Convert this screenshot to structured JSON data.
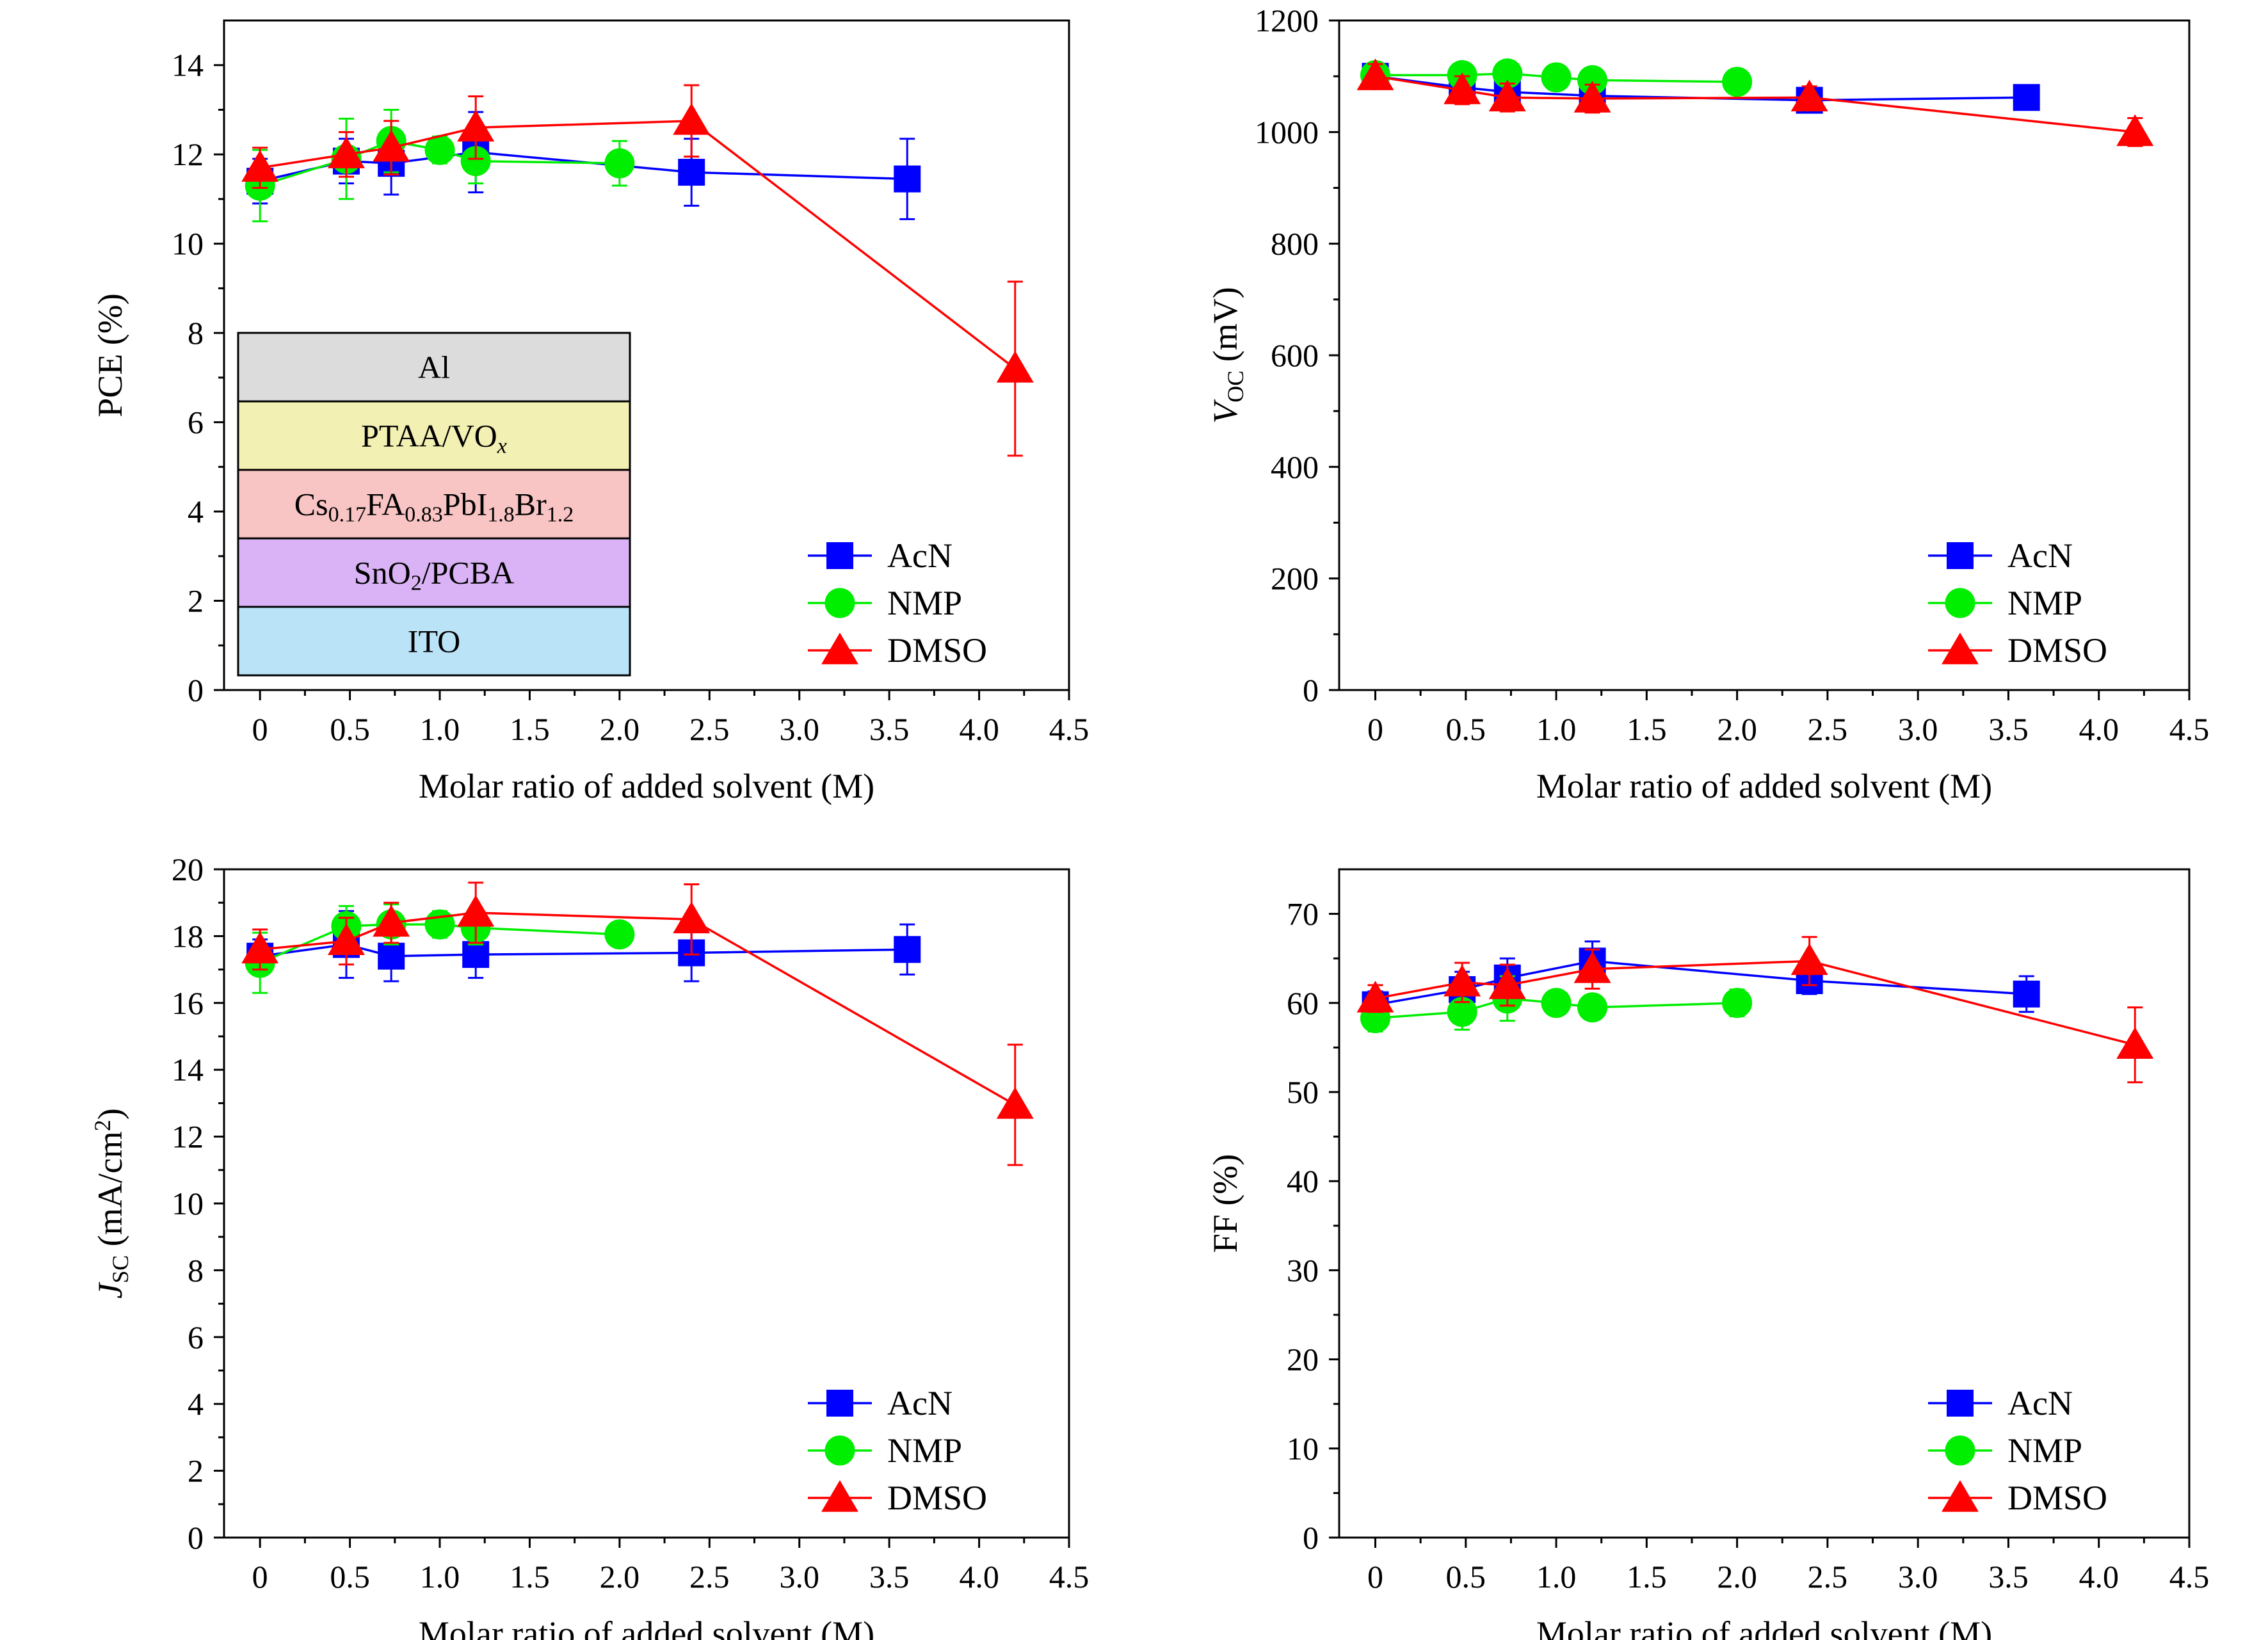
{
  "figure": {
    "colors": {
      "AcN": "#0000ff",
      "NMP": "#00ee00",
      "DMSO": "#ff0000"
    },
    "device_stack": {
      "layers": [
        {
          "label": "Al",
          "color": "#dcdcdc"
        },
        {
          "label": "PTAA/VO",
          "sub": "x",
          "sub_italic": true,
          "color": "#f3f0b3"
        },
        {
          "label": "Cs",
          "parts": [
            "0.17",
            "FA",
            "0.83",
            "PbI",
            "1.8",
            "Br",
            "1.2"
          ],
          "color": "#f8c4c4"
        },
        {
          "label": "SnO",
          "parts": [
            "2",
            "/PCBA"
          ],
          "color": "#d9b3f5"
        },
        {
          "label": "ITO",
          "color": "#bbe3f8"
        }
      ]
    }
  },
  "chart_data": [
    {
      "type": "line",
      "panel": "top-left",
      "xlabel": "Molar ratio of added solvent (M)",
      "ylabel": "PCE (%)",
      "xlim": [
        -0.2,
        4.5
      ],
      "ylim": [
        0,
        15
      ],
      "xticks": [
        "0",
        "0.5",
        "1.0",
        "1.5",
        "2.0",
        "2.5",
        "3.0",
        "3.5",
        "4.0",
        "4.5"
      ],
      "yticks": [
        "0",
        "2",
        "4",
        "6",
        "8",
        "10",
        "12",
        "14"
      ],
      "legend": {
        "position": "bottom-right",
        "entries": [
          "AcN",
          "NMP",
          "DMSO"
        ]
      },
      "series": [
        {
          "name": "AcN",
          "marker": "square",
          "x": [
            0,
            0.48,
            0.73,
            1.2,
            2.4,
            3.6
          ],
          "y": [
            11.4,
            11.85,
            11.8,
            12.05,
            11.6,
            11.45
          ],
          "err": [
            0.5,
            0.5,
            0.7,
            0.9,
            0.75,
            0.9
          ]
        },
        {
          "name": "NMP",
          "marker": "circle",
          "x": [
            0,
            0.48,
            0.73,
            1.0,
            1.2,
            2.0
          ],
          "y": [
            11.3,
            11.9,
            12.3,
            12.1,
            11.85,
            11.8
          ],
          "err": [
            0.8,
            0.9,
            0.7,
            0.3,
            0.5,
            0.5
          ]
        },
        {
          "name": "DMSO",
          "marker": "triangle",
          "x": [
            0,
            0.48,
            0.73,
            1.2,
            2.4,
            4.2
          ],
          "y": [
            11.7,
            12.0,
            12.15,
            12.6,
            12.75,
            7.2
          ],
          "err": [
            0.45,
            0.5,
            0.6,
            0.7,
            0.8,
            1.95
          ]
        }
      ]
    },
    {
      "type": "line",
      "panel": "top-right",
      "xlabel": "Molar ratio of added solvent (M)",
      "ylabel_main": "V",
      "ylabel_sub": "OC",
      "ylabel_unit": " (mV)",
      "xlim": [
        -0.2,
        4.5
      ],
      "ylim": [
        0,
        1200
      ],
      "xticks": [
        "0",
        "0.5",
        "1.0",
        "1.5",
        "2.0",
        "2.5",
        "3.0",
        "3.5",
        "4.0",
        "4.5"
      ],
      "yticks": [
        "0",
        "200",
        "400",
        "600",
        "800",
        "1000",
        "1200"
      ],
      "legend": {
        "position": "bottom-right",
        "entries": [
          "AcN",
          "NMP",
          "DMSO"
        ]
      },
      "series": [
        {
          "name": "AcN",
          "marker": "square",
          "x": [
            0,
            0.48,
            0.73,
            1.2,
            2.4,
            3.6
          ],
          "y": [
            1100,
            1080,
            1072,
            1065,
            1057,
            1062
          ],
          "err": [
            20,
            18,
            18,
            15,
            18,
            12
          ]
        },
        {
          "name": "NMP",
          "marker": "circle",
          "x": [
            0,
            0.48,
            0.73,
            1.0,
            1.2,
            2.0
          ],
          "y": [
            1102,
            1102,
            1105,
            1098,
            1093,
            1090
          ],
          "err": [
            10,
            10,
            10,
            10,
            10,
            10
          ]
        },
        {
          "name": "DMSO",
          "marker": "triangle",
          "x": [
            0,
            0.48,
            0.73,
            1.2,
            2.4,
            4.2
          ],
          "y": [
            1100,
            1075,
            1062,
            1060,
            1062,
            1000
          ],
          "err": [
            22,
            25,
            25,
            25,
            20,
            25
          ]
        }
      ]
    },
    {
      "type": "line",
      "panel": "bottom-left",
      "xlabel": "Molar ratio of added solvent (M)",
      "ylabel_main": "J",
      "ylabel_sub": "SC",
      "ylabel_unit": " (mA/cm",
      "ylabel_sup": "2",
      "ylabel_end": ")",
      "xlim": [
        -0.2,
        4.5
      ],
      "ylim": [
        0,
        20
      ],
      "xticks": [
        "0",
        "0.5",
        "1.0",
        "1.5",
        "2.0",
        "2.5",
        "3.0",
        "3.5",
        "4.0",
        "4.5"
      ],
      "yticks": [
        "0",
        "2",
        "4",
        "6",
        "8",
        "10",
        "12",
        "14",
        "16",
        "18",
        "20"
      ],
      "legend": {
        "position": "bottom-right",
        "entries": [
          "AcN",
          "NMP",
          "DMSO"
        ]
      },
      "series": [
        {
          "name": "AcN",
          "marker": "square",
          "x": [
            0,
            0.48,
            0.73,
            1.2,
            2.4,
            3.6
          ],
          "y": [
            17.4,
            17.75,
            17.4,
            17.45,
            17.5,
            17.6
          ],
          "err": [
            0.5,
            1.0,
            0.75,
            0.7,
            0.85,
            0.75
          ]
        },
        {
          "name": "NMP",
          "marker": "circle",
          "x": [
            0,
            0.48,
            0.73,
            1.0,
            1.2,
            2.0
          ],
          "y": [
            17.2,
            18.3,
            18.35,
            18.35,
            18.25,
            18.05
          ],
          "err": [
            0.9,
            0.6,
            0.6,
            0.4,
            0.5,
            0.3
          ]
        },
        {
          "name": "DMSO",
          "marker": "triangle",
          "x": [
            0,
            0.48,
            0.73,
            1.2,
            2.4,
            4.2
          ],
          "y": [
            17.6,
            17.85,
            18.4,
            18.7,
            18.5,
            12.95
          ],
          "err": [
            0.6,
            0.7,
            0.6,
            0.9,
            1.05,
            1.8
          ]
        }
      ]
    },
    {
      "type": "line",
      "panel": "bottom-right",
      "xlabel": "Molar ratio of added solvent (M)",
      "ylabel": "FF (%)",
      "xlim": [
        -0.2,
        4.5
      ],
      "ylim": [
        0,
        75
      ],
      "xticks": [
        "0",
        "0.5",
        "1.0",
        "1.5",
        "2.0",
        "2.5",
        "3.0",
        "3.5",
        "4.0",
        "4.5"
      ],
      "yticks": [
        "0",
        "10",
        "20",
        "30",
        "40",
        "50",
        "60",
        "70"
      ],
      "legend": {
        "position": "bottom-right",
        "entries": [
          "AcN",
          "NMP",
          "DMSO"
        ]
      },
      "series": [
        {
          "name": "AcN",
          "marker": "square",
          "x": [
            0,
            0.48,
            0.73,
            1.2,
            2.4,
            3.6
          ],
          "y": [
            59.8,
            61.5,
            62.8,
            64.7,
            62.5,
            61.0
          ],
          "err": [
            1.5,
            2.0,
            2.2,
            2.2,
            1.5,
            2.0
          ]
        },
        {
          "name": "NMP",
          "marker": "circle",
          "x": [
            0,
            0.48,
            0.73,
            1.0,
            1.2,
            2.0
          ],
          "y": [
            58.3,
            59.0,
            60.5,
            60.0,
            59.5,
            60.0
          ],
          "err": [
            1.5,
            2.0,
            2.5,
            1.0,
            1.0,
            1.5
          ]
        },
        {
          "name": "DMSO",
          "marker": "triangle",
          "x": [
            0,
            0.48,
            0.73,
            1.2,
            2.4,
            4.2
          ],
          "y": [
            60.5,
            62.3,
            62.0,
            63.8,
            64.7,
            55.3
          ],
          "err": [
            1.5,
            2.2,
            2.3,
            2.2,
            2.7,
            4.2
          ]
        }
      ]
    }
  ]
}
